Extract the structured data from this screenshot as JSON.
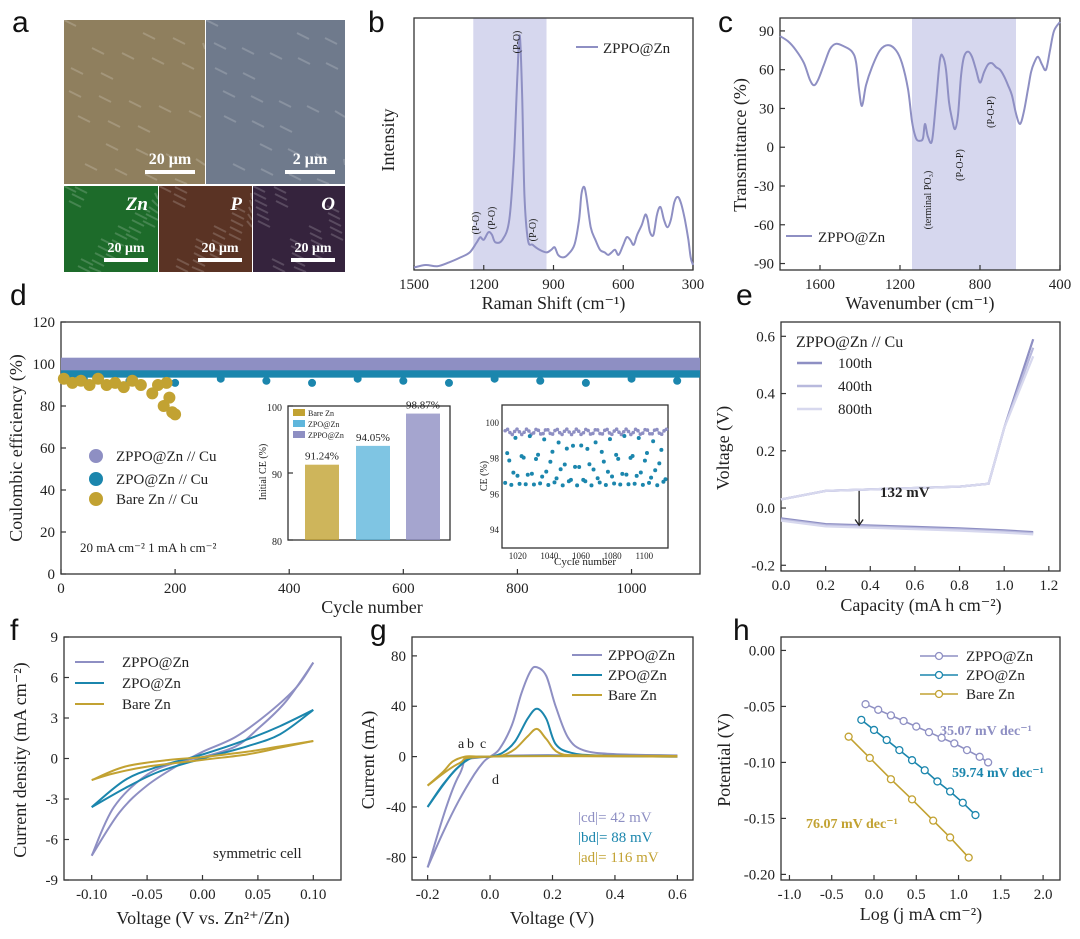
{
  "colors": {
    "zppo": "#8e8fc3",
    "zppo_light": "#b8b9dd",
    "zppo_faint": "#d7d8ee",
    "zpo": "#1b86ad",
    "bare": "#c2a232",
    "band": "#d6d7ee"
  },
  "panel_a": {
    "label": "a",
    "tiles": [
      {
        "scale": "20 μm",
        "color": "#8f7f5e"
      },
      {
        "scale": "2 μm",
        "color": "#6f7a8c"
      },
      {
        "element": "Zn",
        "scale": "20 μm",
        "color": "#1d6b2a"
      },
      {
        "element": "P",
        "scale": "20 μm",
        "color": "#5a3324"
      },
      {
        "element": "O",
        "scale": "20 μm",
        "color": "#35233d"
      }
    ]
  },
  "chart_data": [
    {
      "id": "b",
      "type": "line",
      "label": "b",
      "xlabel": "Raman Shift (cm⁻¹)",
      "ylabel": "Intensity",
      "xlim": [
        1500,
        300
      ],
      "xticks": [
        "1500",
        "1200",
        "900",
        "600",
        "300"
      ],
      "legend": [
        "ZPPO@Zn"
      ],
      "band": [
        1245,
        930
      ],
      "peak_labels": [
        "(P-O)",
        "(P-O)",
        "(P-O)",
        "(P-O)"
      ],
      "series": [
        {
          "name": "ZPPO@Zn",
          "x": [
            1500,
            1450,
            1400,
            1350,
            1300,
            1260,
            1230,
            1215,
            1200,
            1180,
            1165,
            1150,
            1120,
            1090,
            1070,
            1055,
            1045,
            1035,
            1025,
            1010,
            990,
            960,
            930,
            910,
            895,
            880,
            860,
            840,
            810,
            790,
            780,
            770,
            760,
            740,
            720,
            700,
            680,
            665,
            650,
            635,
            620,
            600,
            585,
            570,
            555,
            540,
            520,
            505,
            495,
            485,
            470,
            455,
            440,
            425,
            410,
            395,
            380,
            365,
            350,
            335,
            320,
            310,
            300
          ],
          "y": [
            0.01,
            0.02,
            0.015,
            0.03,
            0.05,
            0.07,
            0.11,
            0.13,
            0.12,
            0.15,
            0.14,
            0.11,
            0.12,
            0.2,
            0.45,
            0.78,
            0.93,
            0.7,
            0.3,
            0.12,
            0.1,
            0.08,
            0.07,
            0.08,
            0.09,
            0.06,
            0.05,
            0.06,
            0.1,
            0.2,
            0.3,
            0.33,
            0.3,
            0.17,
            0.12,
            0.08,
            0.07,
            0.06,
            0.07,
            0.08,
            0.06,
            0.1,
            0.13,
            0.12,
            0.1,
            0.14,
            0.18,
            0.22,
            0.2,
            0.15,
            0.14,
            0.22,
            0.25,
            0.2,
            0.17,
            0.2,
            0.27,
            0.29,
            0.26,
            0.2,
            0.12,
            0.05,
            0.02
          ]
        }
      ]
    },
    {
      "id": "c",
      "type": "line",
      "label": "c",
      "xlabel": "Wavenumber (cm⁻¹)",
      "ylabel": "Transmittance (%)",
      "xlim": [
        1800,
        400
      ],
      "ylim": [
        -95,
        100
      ],
      "xticks": [
        "1600",
        "1200",
        "800",
        "400"
      ],
      "yticks": [
        "90",
        "60",
        "30",
        "0",
        "-30",
        "-60",
        "-90"
      ],
      "legend": [
        "ZPPO@Zn"
      ],
      "band": [
        1140,
        620
      ],
      "peak_labels": [
        "(terminal PO₃)",
        "(P-O-P)",
        "(P-O-P)"
      ],
      "series": [
        {
          "name": "ZPPO@Zn",
          "x": [
            1800,
            1760,
            1720,
            1680,
            1650,
            1630,
            1610,
            1580,
            1550,
            1520,
            1480,
            1440,
            1420,
            1405,
            1390,
            1370,
            1340,
            1300,
            1260,
            1220,
            1190,
            1160,
            1140,
            1120,
            1100,
            1085,
            1075,
            1060,
            1040,
            1020,
            1000,
            985,
            970,
            955,
            940,
            925,
            910,
            895,
            880,
            860,
            840,
            820,
            800,
            780,
            760,
            740,
            720,
            700,
            680,
            660,
            640,
            620,
            600,
            580,
            560,
            545,
            530,
            510,
            490,
            470,
            450,
            430,
            400
          ],
          "y": [
            86,
            82,
            75,
            65,
            52,
            48,
            52,
            64,
            76,
            80,
            78,
            74,
            66,
            45,
            32,
            48,
            62,
            75,
            79,
            75,
            65,
            45,
            20,
            7,
            5,
            7,
            18,
            8,
            5,
            35,
            68,
            70,
            60,
            35,
            22,
            14,
            25,
            55,
            70,
            74,
            70,
            60,
            50,
            58,
            64,
            65,
            62,
            60,
            55,
            48,
            40,
            26,
            18,
            28,
            45,
            58,
            65,
            70,
            64,
            60,
            75,
            90,
            97
          ]
        }
      ]
    },
    {
      "id": "d",
      "type": "scatter",
      "label": "d",
      "xlabel": "Cycle number",
      "ylabel": "Coulombic efficiency (%)",
      "xlim": [
        0,
        1120
      ],
      "ylim": [
        0,
        120
      ],
      "xticks": [
        "0",
        "200",
        "400",
        "600",
        "800",
        "1000"
      ],
      "yticks": [
        "0",
        "20",
        "40",
        "60",
        "80",
        "100",
        "120"
      ],
      "condition": "20 mA cm⁻²  1 mA h cm⁻²",
      "legend": [
        "ZPPO@Zn // Cu",
        "ZPO@Zn // Cu",
        "Bare Zn // Cu"
      ],
      "bare_points": [
        [
          5,
          93
        ],
        [
          20,
          91
        ],
        [
          35,
          92
        ],
        [
          50,
          90
        ],
        [
          65,
          93
        ],
        [
          80,
          90
        ],
        [
          95,
          91
        ],
        [
          110,
          89
        ],
        [
          125,
          92
        ],
        [
          140,
          90
        ],
        [
          160,
          86
        ],
        [
          170,
          90
        ],
        [
          180,
          80
        ],
        [
          190,
          84
        ],
        [
          195,
          77
        ],
        [
          200,
          76
        ],
        [
          185,
          91
        ]
      ],
      "inset_bar": {
        "ylabel": "Initial CE (%)",
        "ylim": [
          80,
          100
        ],
        "yticks": [
          "80",
          "90",
          "100"
        ],
        "legend": [
          "Bare Zn",
          "ZPO@Zn",
          "ZPPO@Zn"
        ],
        "values": [
          91.24,
          94.05,
          98.87
        ],
        "value_labels": [
          "91.24%",
          "94.05%",
          "98.87%"
        ]
      },
      "inset_scatter": {
        "xlabel": "Cycle number",
        "ylabel": "CE (%)",
        "xlim": [
          1010,
          1115
        ],
        "ylim": [
          93,
          101
        ],
        "xticks": [
          "1020",
          "1040",
          "1060",
          "1080",
          "1100"
        ],
        "yticks": [
          "94",
          "96",
          "98",
          "100"
        ]
      }
    },
    {
      "id": "e",
      "type": "line",
      "label": "e",
      "xlabel": "Capacity (mA h cm⁻²)",
      "ylabel": "Voltage (V)",
      "xlim": [
        0,
        1.25
      ],
      "ylim": [
        -0.22,
        0.65
      ],
      "xticks": [
        "0.0",
        "0.2",
        "0.4",
        "0.6",
        "0.8",
        "1.0",
        "1.2"
      ],
      "yticks": [
        "-0.2",
        "0.0",
        "0.2",
        "0.4",
        "0.6"
      ],
      "legend_title": "ZPPO@Zn // Cu",
      "legend": [
        "100th",
        "400th",
        "800th"
      ],
      "annotation": "132 mV",
      "charge": {
        "x": [
          0,
          0.2,
          0.4,
          0.6,
          0.8,
          0.93,
          1.0,
          1.13
        ],
        "y": [
          0.03,
          0.06,
          0.065,
          0.07,
          0.075,
          0.085,
          0.28,
          0.56
        ]
      },
      "discharge": {
        "x": [
          0,
          0.2,
          0.4,
          0.6,
          0.8,
          1.0,
          1.13
        ],
        "y": [
          -0.04,
          -0.06,
          -0.065,
          -0.07,
          -0.075,
          -0.082,
          -0.088
        ]
      }
    },
    {
      "id": "f",
      "type": "line",
      "label": "f",
      "xlabel": "Voltage (V vs. Zn²⁺/Zn)",
      "ylabel": "Current density (mA cm⁻²)",
      "xlim": [
        -0.125,
        0.125
      ],
      "ylim": [
        -9,
        9
      ],
      "xticks": [
        "-0.10",
        "-0.05",
        "0.00",
        "0.05",
        "0.10"
      ],
      "yticks": [
        "-9",
        "-6",
        "-3",
        "0",
        "3",
        "6",
        "9"
      ],
      "legend": [
        "ZPPO@Zn",
        "ZPO@Zn",
        "Bare Zn"
      ],
      "note": "symmetric cell",
      "series": [
        {
          "name": "ZPPO@Zn",
          "upper": [
            [
              -0.1,
              -7.2
            ],
            [
              -0.075,
              -4.0
            ],
            [
              -0.05,
              -2.0
            ],
            [
              -0.02,
              -0.4
            ],
            [
              0,
              0.5
            ],
            [
              0.03,
              1.6
            ],
            [
              0.06,
              3.4
            ],
            [
              0.085,
              5.3
            ],
            [
              0.1,
              7.1
            ]
          ],
          "lower": [
            [
              -0.1,
              -7.2
            ],
            [
              -0.08,
              -3.6
            ],
            [
              -0.05,
              -1.2
            ],
            [
              -0.02,
              -0.2
            ],
            [
              0,
              0.1
            ],
            [
              0.03,
              0.9
            ],
            [
              0.05,
              2.2
            ],
            [
              0.075,
              4.2
            ],
            [
              0.1,
              7.1
            ]
          ]
        },
        {
          "name": "ZPO@Zn",
          "upper": [
            [
              -0.1,
              -3.6
            ],
            [
              -0.07,
              -1.6
            ],
            [
              -0.04,
              -0.6
            ],
            [
              0,
              0.3
            ],
            [
              0.04,
              1.4
            ],
            [
              0.07,
              2.4
            ],
            [
              0.1,
              3.6
            ]
          ],
          "lower": [
            [
              -0.1,
              -3.6
            ],
            [
              -0.07,
              -2.2
            ],
            [
              -0.04,
              -1.0
            ],
            [
              0,
              0.0
            ],
            [
              0.04,
              0.9
            ],
            [
              0.07,
              1.8
            ],
            [
              0.1,
              3.6
            ]
          ]
        },
        {
          "name": "Bare Zn",
          "upper": [
            [
              -0.1,
              -1.6
            ],
            [
              -0.07,
              -0.6
            ],
            [
              -0.03,
              -0.1
            ],
            [
              0,
              0.1
            ],
            [
              0.04,
              0.5
            ],
            [
              0.07,
              0.9
            ],
            [
              0.1,
              1.3
            ]
          ],
          "lower": [
            [
              -0.1,
              -1.6
            ],
            [
              -0.08,
              -1.1
            ],
            [
              -0.05,
              -0.6
            ],
            [
              0,
              -0.1
            ],
            [
              0.04,
              0.3
            ],
            [
              0.07,
              0.8
            ],
            [
              0.1,
              1.3
            ]
          ]
        }
      ]
    },
    {
      "id": "g",
      "type": "line",
      "label": "g",
      "xlabel": "Voltage (V)",
      "ylabel": "Current (mA)",
      "xlim": [
        -0.25,
        0.65
      ],
      "ylim": [
        -98,
        95
      ],
      "xticks": [
        "-0.2",
        "0.0",
        "0.2",
        "0.4",
        "0.6"
      ],
      "yticks": [
        "-80",
        "-40",
        "0",
        "40",
        "80"
      ],
      "legend": [
        "ZPPO@Zn",
        "ZPO@Zn",
        "Bare Zn"
      ],
      "point_labels": [
        "a",
        "b",
        "c",
        "d"
      ],
      "diffs": [
        "|cd|= 42 mV",
        "|bd|= 88 mV",
        "|ad|= 116 mV"
      ],
      "series": [
        {
          "name": "ZPPO@Zn",
          "x": [
            -0.2,
            -0.15,
            -0.1,
            -0.05,
            -0.02,
            0.0,
            0.03,
            0.07,
            0.1,
            0.13,
            0.15,
            0.18,
            0.21,
            0.25,
            0.3,
            0.4,
            0.6
          ],
          "y": [
            -88,
            -60,
            -35,
            -14,
            -4,
            0,
            6,
            25,
            50,
            68,
            71,
            64,
            40,
            15,
            5,
            2,
            1
          ]
        },
        {
          "name": "ZPO@Zn",
          "x": [
            -0.2,
            -0.15,
            -0.1,
            -0.06,
            -0.03,
            0.0,
            0.04,
            0.08,
            0.12,
            0.15,
            0.18,
            0.21,
            0.26,
            0.35,
            0.6
          ],
          "y": [
            -40,
            -22,
            -8,
            -1,
            0,
            0,
            3,
            12,
            30,
            38,
            30,
            10,
            3,
            1,
            0.5
          ]
        },
        {
          "name": "Bare Zn",
          "x": [
            -0.2,
            -0.15,
            -0.12,
            -0.08,
            -0.04,
            0.0,
            0.04,
            0.08,
            0.12,
            0.15,
            0.18,
            0.22,
            0.3,
            0.6
          ],
          "y": [
            -23,
            -12,
            -4,
            0,
            0,
            0,
            1,
            6,
            16,
            22,
            14,
            3,
            1,
            0.5
          ]
        }
      ]
    },
    {
      "id": "h",
      "type": "line",
      "label": "h",
      "xlabel": "Log (j mA cm⁻²)",
      "ylabel": "Potential (V)",
      "xlim": [
        -1.1,
        2.2
      ],
      "ylim": [
        -0.205,
        0.012
      ],
      "xticks": [
        "-1.0",
        "-0.5",
        "0.0",
        "0.5",
        "1.0",
        "1.5",
        "2.0"
      ],
      "yticks": [
        "0.00",
        "-0.05",
        "-0.10",
        "-0.15",
        "-0.20"
      ],
      "legend": [
        "ZPPO@Zn",
        "ZPO@Zn",
        "Bare Zn"
      ],
      "slopes": [
        "35.07 mV dec⁻¹",
        "59.74 mV dec⁻¹",
        "76.07 mV dec⁻¹"
      ],
      "series": [
        {
          "name": "ZPPO@Zn",
          "x": [
            -0.1,
            0.05,
            0.2,
            0.35,
            0.5,
            0.65,
            0.8,
            0.95,
            1.1,
            1.25,
            1.35
          ],
          "y": [
            -0.048,
            -0.053,
            -0.058,
            -0.063,
            -0.068,
            -0.073,
            -0.078,
            -0.083,
            -0.089,
            -0.095,
            -0.1
          ]
        },
        {
          "name": "ZPO@Zn",
          "x": [
            -0.15,
            0.0,
            0.15,
            0.3,
            0.45,
            0.6,
            0.75,
            0.9,
            1.05,
            1.2
          ],
          "y": [
            -0.062,
            -0.071,
            -0.08,
            -0.089,
            -0.098,
            -0.107,
            -0.117,
            -0.126,
            -0.136,
            -0.147
          ]
        },
        {
          "name": "Bare Zn",
          "x": [
            -0.3,
            -0.05,
            0.2,
            0.45,
            0.7,
            0.9,
            1.12
          ],
          "y": [
            -0.077,
            -0.096,
            -0.115,
            -0.133,
            -0.152,
            -0.167,
            -0.185
          ]
        }
      ]
    }
  ]
}
